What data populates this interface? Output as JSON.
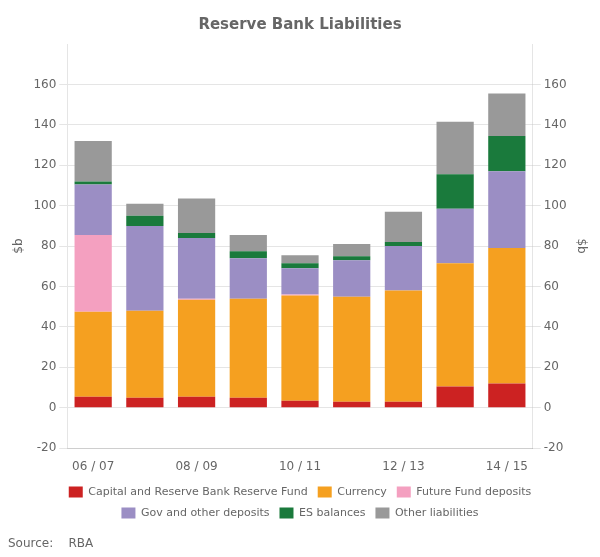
{
  "chart_data": {
    "type": "bar",
    "stacked": true,
    "title": "Reserve Bank Liabilities",
    "ylabel": "$b",
    "y2label": "$b",
    "annotations": [
      "Source:    RBA"
    ],
    "categories": [
      "06 / 07",
      null,
      "08 / 09",
      null,
      "10 / 11",
      null,
      "12 / 13",
      null,
      "14 / 15"
    ],
    "series": [
      {
        "name": "Capital and Reserve Bank Reserve Fund",
        "color": "#cc2222",
        "values": [
          5.5,
          5.0,
          5.5,
          5.0,
          3.5,
          3.0,
          3.0,
          10.5,
          12.0
        ]
      },
      {
        "name": "Currency",
        "color": "#f5a020",
        "values": [
          42.0,
          43.0,
          48.0,
          49.0,
          52.0,
          52.0,
          55.0,
          61.0,
          67.0
        ]
      },
      {
        "name": "Future Fund deposits",
        "color": "#f4a0c0",
        "values": [
          38.0,
          0.0,
          0.5,
          0.0,
          0.5,
          0.0,
          0.0,
          0.0,
          0.0
        ]
      },
      {
        "name": "Gov and other deposits",
        "color": "#9b8ec4",
        "values": [
          25.0,
          42.0,
          30.0,
          20.0,
          13.0,
          18.0,
          22.0,
          27.0,
          38.0
        ]
      },
      {
        "name": "ES balances",
        "color": "#1a7a3c",
        "values": [
          1.5,
          5.0,
          2.5,
          3.5,
          2.5,
          2.0,
          2.0,
          17.0,
          17.5
        ]
      },
      {
        "name": "Other liabilities",
        "color": "#999999",
        "values": [
          20.0,
          6.0,
          17.0,
          8.0,
          4.0,
          6.0,
          15.0,
          26.0,
          21.0
        ]
      }
    ],
    "ylim": [
      -20,
      180
    ],
    "yticks": [
      -20,
      0,
      20,
      40,
      60,
      80,
      100,
      120,
      140,
      160
    ],
    "y2lim": [
      -20,
      180
    ],
    "y2ticks": [
      -20,
      0,
      20,
      40,
      60,
      80,
      100,
      120,
      140,
      160
    ],
    "grid": true,
    "legend": "bottom"
  }
}
